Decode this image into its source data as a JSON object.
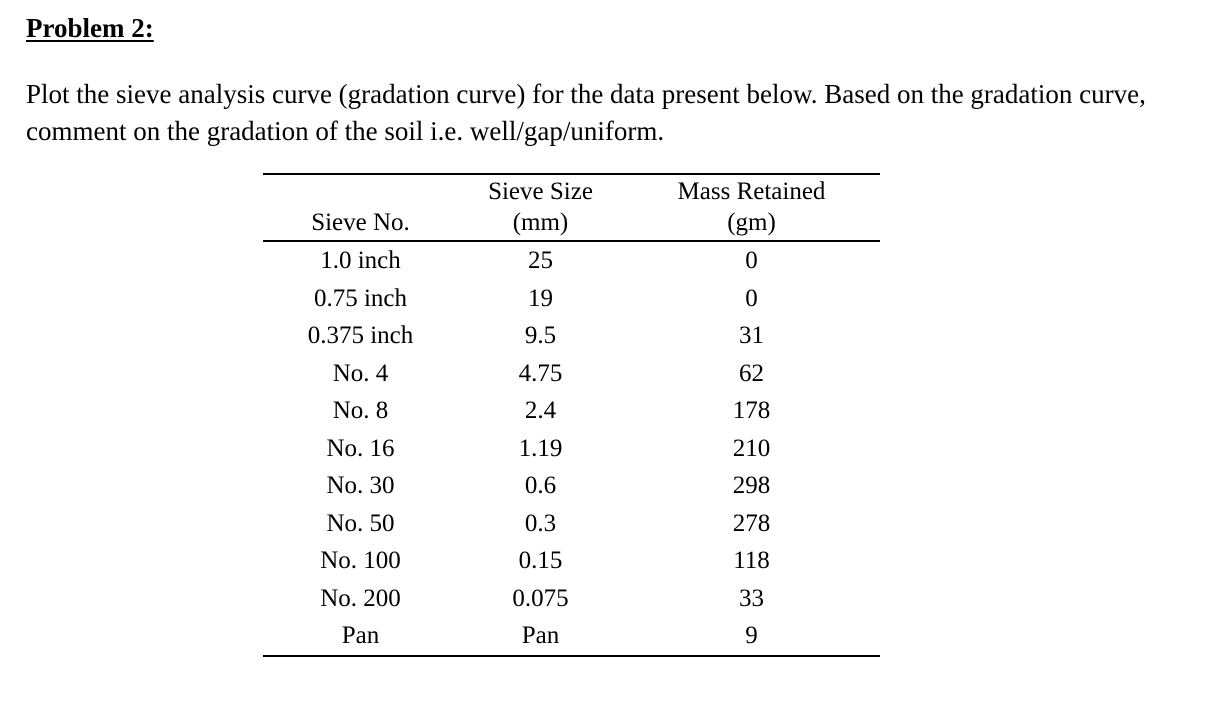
{
  "problem": {
    "heading": "Problem 2:",
    "text": "Plot the sieve analysis curve (gradation curve) for the data present below. Based on the gradation curve, comment on the gradation of the soil i.e. well/gap/uniform."
  },
  "table": {
    "headers": {
      "sieve_no": "Sieve No.",
      "sieve_size_line1": "Sieve Size",
      "sieve_size_line2": "(mm)",
      "mass_line1": "Mass Retained",
      "mass_line2": "(gm)"
    },
    "rows": [
      {
        "sieve_no": "1.0 inch",
        "size": "25",
        "mass": "0"
      },
      {
        "sieve_no": "0.75 inch",
        "size": "19",
        "mass": "0"
      },
      {
        "sieve_no": "0.375 inch",
        "size": "9.5",
        "mass": "31"
      },
      {
        "sieve_no": "No. 4",
        "size": "4.75",
        "mass": "62"
      },
      {
        "sieve_no": "No. 8",
        "size": "2.4",
        "mass": "178"
      },
      {
        "sieve_no": "No. 16",
        "size": "1.19",
        "mass": "210"
      },
      {
        "sieve_no": "No. 30",
        "size": "0.6",
        "mass": "298"
      },
      {
        "sieve_no": "No. 50",
        "size": "0.3",
        "mass": "278"
      },
      {
        "sieve_no": "No. 100",
        "size": "0.15",
        "mass": "118"
      },
      {
        "sieve_no": "No. 200",
        "size": "0.075",
        "mass": "33"
      },
      {
        "sieve_no": "Pan",
        "size": "Pan",
        "mass": "9"
      }
    ]
  }
}
